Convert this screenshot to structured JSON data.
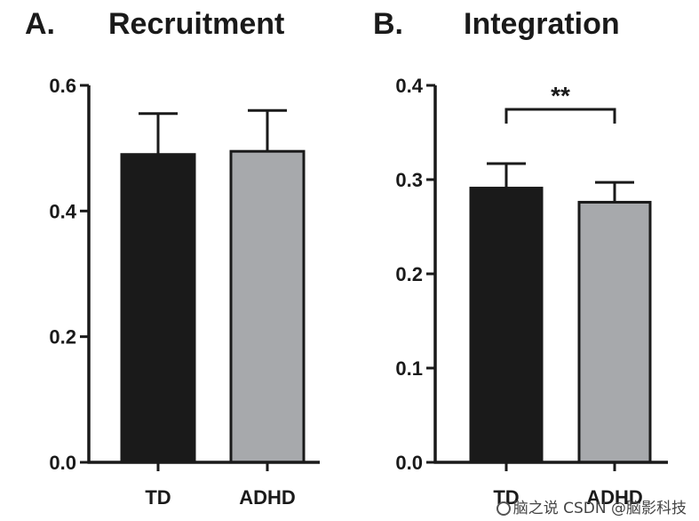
{
  "colors": {
    "td": "#1a1a1a",
    "adhd": "#a7a9ac",
    "axis": "#1a1a1a"
  },
  "watermark": {
    "line1": "脑之说",
    "line2": "CSDN @脑影科技"
  },
  "chart_data": [
    {
      "type": "bar",
      "panel_label": "A.",
      "title": "Recruitment",
      "categories": [
        "TD",
        "ADHD"
      ],
      "values": [
        0.49,
        0.495
      ],
      "errors": [
        0.065,
        0.065
      ],
      "ylim": [
        0,
        0.6
      ],
      "yticks": [
        0.0,
        0.2,
        0.4,
        0.6
      ],
      "ytick_labels": [
        "0.0",
        "0.2",
        "0.4",
        "0.6"
      ],
      "xlabel": "",
      "ylabel": "",
      "significance": null
    },
    {
      "type": "bar",
      "panel_label": "B.",
      "title": "Integration",
      "categories": [
        "TD",
        "ADHD"
      ],
      "values": [
        0.291,
        0.276
      ],
      "errors": [
        0.026,
        0.021
      ],
      "ylim": [
        0,
        0.4
      ],
      "yticks": [
        0.0,
        0.1,
        0.2,
        0.3,
        0.4
      ],
      "ytick_labels": [
        "0.0",
        "0.1",
        "0.2",
        "0.3",
        "0.4"
      ],
      "xlabel": "",
      "ylabel": "",
      "significance": {
        "label": "**",
        "between": [
          "TD",
          "ADHD"
        ]
      }
    }
  ]
}
